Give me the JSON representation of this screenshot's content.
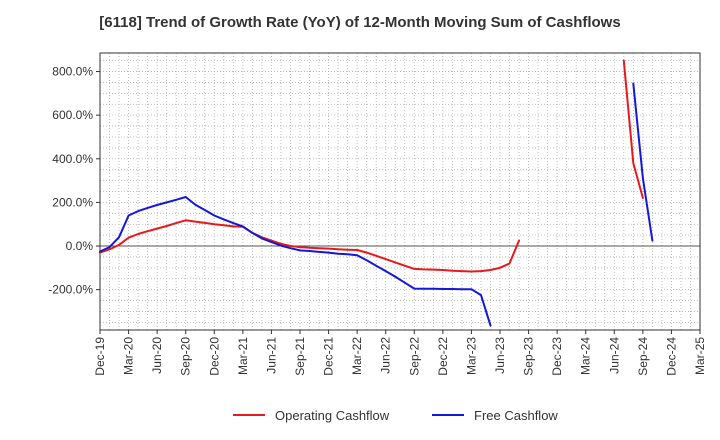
{
  "chart_data": {
    "type": "line",
    "title": "[6118]  Trend of Growth Rate (YoY) of 12-Month Moving Sum of Cashflows",
    "xlabel": "",
    "ylabel": "",
    "y_unit": "%",
    "ylim": [
      -385,
      885
    ],
    "yticks": [
      -200,
      0,
      200,
      400,
      600,
      800
    ],
    "ytick_labels": [
      "-200.0%",
      "0.0%",
      "200.0%",
      "400.0%",
      "600.0%",
      "800.0%"
    ],
    "x_start": "2019-12",
    "x_end": "2025-03",
    "xtick_labels": [
      "Dec-19",
      "Mar-20",
      "Jun-20",
      "Sep-20",
      "Dec-20",
      "Mar-21",
      "Jun-21",
      "Sep-21",
      "Dec-21",
      "Mar-22",
      "Jun-22",
      "Sep-22",
      "Dec-22",
      "Mar-23",
      "Jun-23",
      "Sep-23",
      "Dec-23",
      "Mar-24",
      "Jun-24",
      "Sep-24",
      "Dec-24",
      "Mar-25"
    ],
    "grid": true,
    "legend_position": "bottom",
    "series": [
      {
        "name": "Operating Cashflow",
        "color": "#e8191c",
        "segments": [
          [
            [
              "2019-12",
              -30
            ],
            [
              "2020-01",
              -15
            ],
            [
              "2020-02",
              5
            ],
            [
              "2020-03",
              38
            ],
            [
              "2020-04",
              55
            ],
            [
              "2020-05",
              68
            ],
            [
              "2020-06",
              80
            ],
            [
              "2020-07",
              92
            ],
            [
              "2020-08",
              105
            ],
            [
              "2020-09",
              118
            ],
            [
              "2020-10",
              112
            ],
            [
              "2020-11",
              106
            ],
            [
              "2020-12",
              100
            ],
            [
              "2021-01",
              95
            ],
            [
              "2021-02",
              90
            ],
            [
              "2021-03",
              88
            ],
            [
              "2021-04",
              60
            ],
            [
              "2021-05",
              40
            ],
            [
              "2021-06",
              25
            ],
            [
              "2021-07",
              10
            ],
            [
              "2021-08",
              0
            ],
            [
              "2021-09",
              -5
            ],
            [
              "2021-10",
              -8
            ],
            [
              "2021-11",
              -10
            ],
            [
              "2021-12",
              -12
            ],
            [
              "2022-01",
              -15
            ],
            [
              "2022-02",
              -17
            ],
            [
              "2022-03",
              -18
            ],
            [
              "2022-04",
              -30
            ],
            [
              "2022-05",
              -45
            ],
            [
              "2022-06",
              -60
            ],
            [
              "2022-07",
              -75
            ],
            [
              "2022-08",
              -90
            ],
            [
              "2022-09",
              -105
            ],
            [
              "2022-10",
              -107
            ],
            [
              "2022-11",
              -108
            ],
            [
              "2022-12",
              -110
            ],
            [
              "2023-01",
              -113
            ],
            [
              "2023-02",
              -115
            ],
            [
              "2023-03",
              -117
            ],
            [
              "2023-04",
              -115
            ],
            [
              "2023-05",
              -110
            ],
            [
              "2023-06",
              -100
            ],
            [
              "2023-07",
              -80
            ],
            [
              "2023-08",
              25
            ]
          ],
          [
            [
              "2024-07",
              850
            ],
            [
              "2024-08",
              380
            ],
            [
              "2024-09",
              220
            ]
          ]
        ]
      },
      {
        "name": "Free Cashflow",
        "color": "#1418d8",
        "segments": [
          [
            [
              "2019-12",
              -25
            ],
            [
              "2020-01",
              -5
            ],
            [
              "2020-02",
              40
            ],
            [
              "2020-03",
              140
            ],
            [
              "2020-04",
              160
            ],
            [
              "2020-05",
              175
            ],
            [
              "2020-06",
              188
            ],
            [
              "2020-07",
              200
            ],
            [
              "2020-08",
              212
            ],
            [
              "2020-09",
              225
            ],
            [
              "2020-10",
              190
            ],
            [
              "2020-11",
              165
            ],
            [
              "2020-12",
              140
            ],
            [
              "2021-01",
              122
            ],
            [
              "2021-02",
              105
            ],
            [
              "2021-03",
              90
            ],
            [
              "2021-04",
              60
            ],
            [
              "2021-05",
              35
            ],
            [
              "2021-06",
              18
            ],
            [
              "2021-07",
              2
            ],
            [
              "2021-08",
              -10
            ],
            [
              "2021-09",
              -20
            ],
            [
              "2021-10",
              -23
            ],
            [
              "2021-11",
              -27
            ],
            [
              "2021-12",
              -30
            ],
            [
              "2022-01",
              -35
            ],
            [
              "2022-02",
              -38
            ],
            [
              "2022-03",
              -42
            ],
            [
              "2022-04",
              -65
            ],
            [
              "2022-05",
              -90
            ],
            [
              "2022-06",
              -115
            ],
            [
              "2022-07",
              -140
            ],
            [
              "2022-08",
              -168
            ],
            [
              "2022-09",
              -195
            ],
            [
              "2022-10",
              -196
            ],
            [
              "2022-11",
              -196
            ],
            [
              "2022-12",
              -197
            ],
            [
              "2023-01",
              -197
            ],
            [
              "2023-02",
              -198
            ],
            [
              "2023-03",
              -198
            ],
            [
              "2023-04",
              -225
            ],
            [
              "2023-05",
              -365
            ]
          ],
          [
            [
              "2024-08",
              745
            ],
            [
              "2024-09",
              310
            ],
            [
              "2024-10",
              25
            ]
          ]
        ]
      }
    ]
  }
}
